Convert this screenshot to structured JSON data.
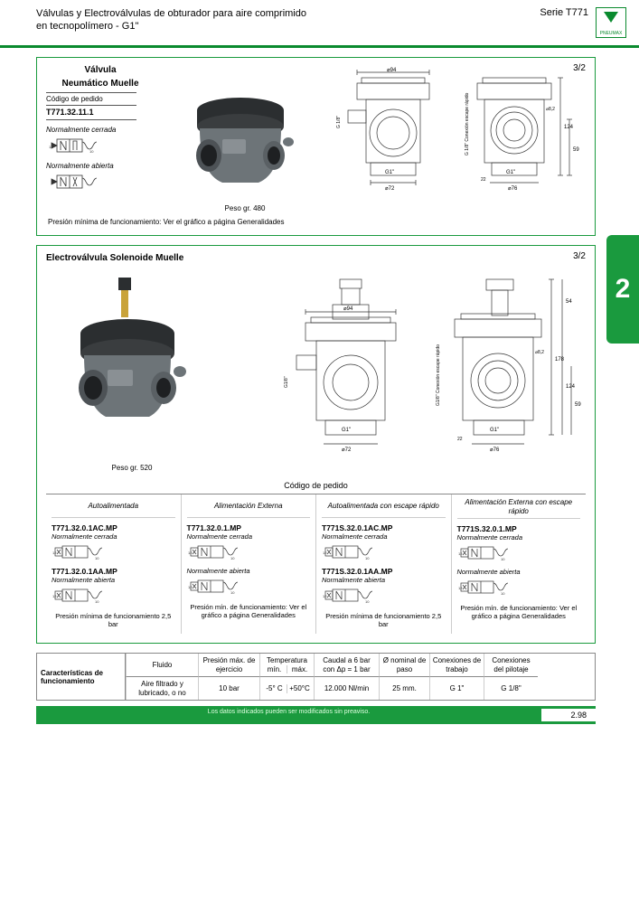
{
  "header": {
    "title_l1": "Válvulas y Electroválvulas de obturador para aire comprimido",
    "title_l2": "en tecnopolímero - G1\"",
    "serie": "Serie T771",
    "brand": "PNEUMAX"
  },
  "colors": {
    "brand_green": "#1a9a3e",
    "rule_green": "#0a8a2e",
    "body_grey": "#6d7478",
    "cap_black": "#2b2e30",
    "line": "#333333"
  },
  "tab": {
    "number": "2"
  },
  "section1": {
    "title_l1": "Válvula",
    "title_l2": "Neumático Muelle",
    "ratio": "3/2",
    "code_header": "Código de pedido",
    "code": "T771.32.11.1",
    "state_nc": "Normalmente cerrada",
    "state_na": "Normalmente abierta",
    "weight": "Peso gr. 480",
    "note": "Presión mínima de funcionamiento: Ver el gráfico a página Generalidades",
    "dims": {
      "w1": "⌀94",
      "w2": "⌀72",
      "w3": "⌀76",
      "h1": "124",
      "h2": "59",
      "h3": "22",
      "port": "G1\"",
      "pilot": "G 1/8\" Conexión escape rápido",
      "d": "⌀8,2"
    }
  },
  "section2": {
    "title": "Electroválvula Solenoide Muelle",
    "ratio": "3/2",
    "weight": "Peso gr. 520",
    "order_header": "Código de pedido",
    "dims": {
      "w1": "⌀94",
      "w2": "⌀72",
      "w3": "⌀76",
      "h1": "178",
      "h2": "124",
      "h3": "59",
      "h4": "54",
      "h5": "22",
      "port": "G1\"",
      "pilot": "G1/8\" Conexión escape rápido",
      "d": "⌀8,2"
    },
    "cols": [
      {
        "header": "Autoalimentada",
        "code1": "T771.32.0.1AC.MP",
        "state1": "Normalmente cerrada",
        "code2": "T771.32.0.1AA.MP",
        "state2": "Normalmente abierta",
        "note": "Presión mínima de funcionamiento 2,5 bar"
      },
      {
        "header": "Alimentación Externa",
        "code1": "T771.32.0.1.MP",
        "state1": "Normalmente cerrada",
        "code2": "",
        "state2": "Normalmente abierta",
        "note": "Presión mín. de funcionamiento: Ver el gráfico a página Generalidades"
      },
      {
        "header": "Autoalimentada con escape rápido",
        "code1": "T771S.32.0.1AC.MP",
        "state1": "Normalmente cerrada",
        "code2": "T771S.32.0.1AA.MP",
        "state2": "Normalmente abierta",
        "note": "Presión mínima de funcionamiento 2,5 bar"
      },
      {
        "header": "Alimentación Externa con escape rápido",
        "code1": "T771S.32.0.1.MP",
        "state1": "Normalmente cerrada",
        "code2": "",
        "state2": "Normalmente abierta",
        "note": "Presión mín. de funcionamiento: Ver el gráfico a página Generalidades"
      }
    ]
  },
  "char": {
    "label": "Características de funcionamiento",
    "headers": [
      "Fluido",
      "Presión máx. de ejercicio",
      "Temperatura",
      "Caudal a 6 bar con Δp = 1 bar",
      "Ø nominal de paso",
      "Conexiones de trabajo",
      "Conexiones del pilotaje"
    ],
    "temp_sub": [
      "mín.",
      "máx."
    ],
    "values": {
      "fluid": "Aire filtrado y lubricado, o no",
      "pmax": "10 bar",
      "tmin": "-5° C",
      "tmax": "+50°C",
      "flow": "12.000 Nl/min",
      "dnom": "25 mm.",
      "conn_w": "G 1\"",
      "conn_p": "G 1/8\""
    }
  },
  "footer": {
    "disclaimer": "Los datos indicados pueden ser modificados sin preaviso.",
    "page": "2.98"
  }
}
